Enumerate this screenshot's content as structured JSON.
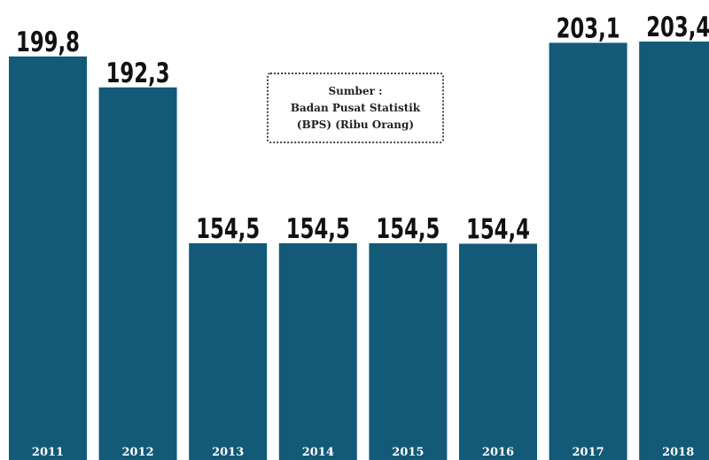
{
  "colors": {
    "bar": "#125a78",
    "value_label": "#111111",
    "year_label": "#ffffff",
    "background": "#ffffff"
  },
  "source_note": {
    "line1": "Sumber :",
    "line2": "Badan Pusat Statistik",
    "line3": "(BPS) (Ribu Orang)"
  },
  "chart_data": {
    "type": "bar",
    "categories": [
      "2011",
      "2012",
      "2013",
      "2014",
      "2015",
      "2016",
      "2017",
      "2018"
    ],
    "values": [
      199.8,
      192.3,
      154.5,
      154.5,
      154.5,
      154.4,
      203.1,
      203.4
    ],
    "value_labels": [
      "199,8",
      "192,3",
      "154,5",
      "154,5",
      "154,5",
      "154,4",
      "203,1",
      "203,4"
    ],
    "title": "",
    "xlabel": "",
    "ylabel": "",
    "grid": false,
    "legend": "none"
  }
}
